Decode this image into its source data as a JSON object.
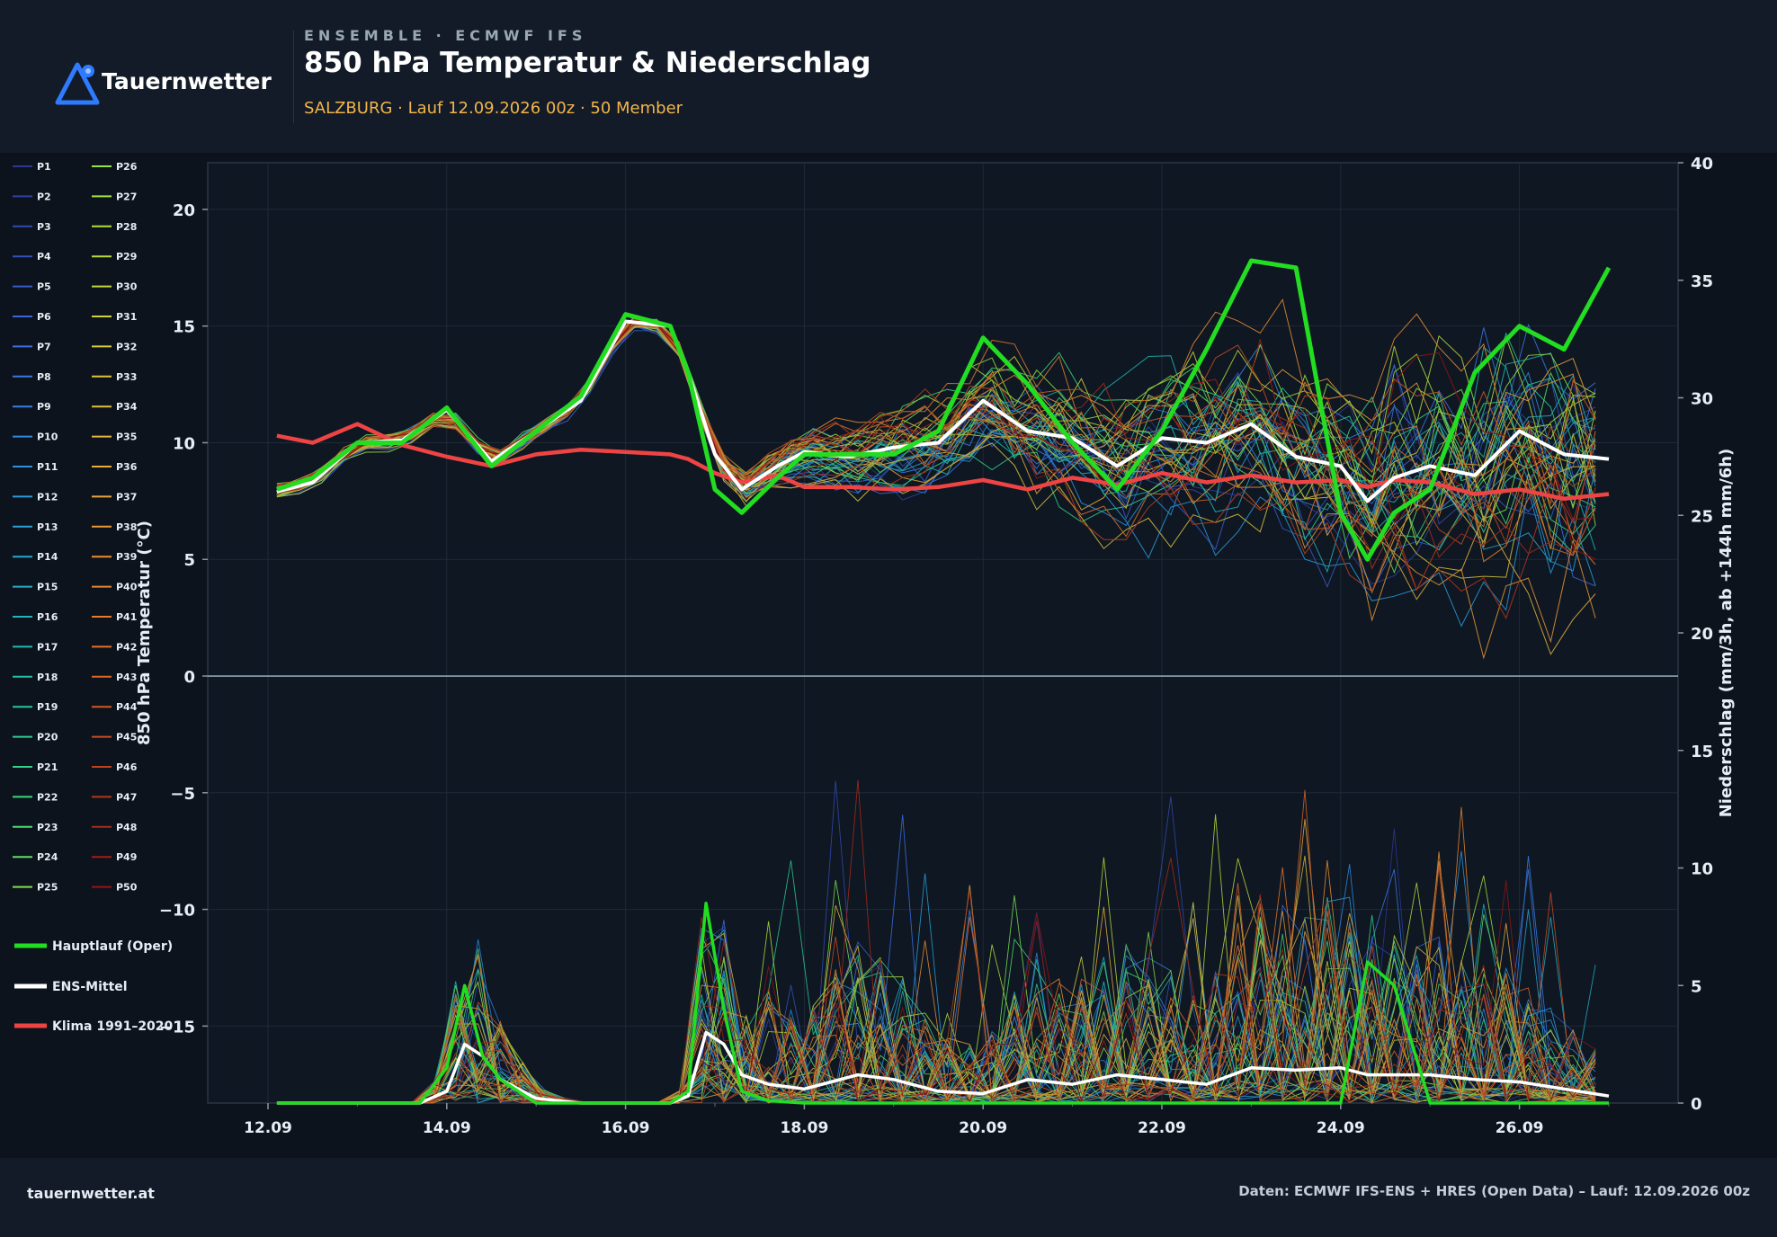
{
  "header": {
    "brand": "Tauernwetter",
    "kicker": "ENSEMBLE · ECMWF IFS",
    "title": "850 hPa Temperatur & Niederschlag",
    "subtitle": "SALZBURG · Lauf 12.09.2026 00z · 50 Member"
  },
  "footer": {
    "left": "tauernwetter.at",
    "right": "Daten: ECMWF IFS-ENS + HRES (Open Data) – Lauf: 12.09.2026 00z"
  },
  "colors": {
    "background": "#0d131c",
    "panel": "#121b27",
    "oper": "#22dd22",
    "mean": "#ffffff",
    "clim": "#ee4444",
    "accent": "#f2b54a"
  },
  "chart_data": {
    "type": "line",
    "x_domain_days": [
      12,
      27
    ],
    "x_ticks": [
      {
        "day": 12,
        "label": "12.09"
      },
      {
        "day": 14,
        "label": "14.09"
      },
      {
        "day": 16,
        "label": "16.09"
      },
      {
        "day": 18,
        "label": "18.09"
      },
      {
        "day": 20,
        "label": "20.09"
      },
      {
        "day": 22,
        "label": "22.09"
      },
      {
        "day": 24,
        "label": "24.09"
      },
      {
        "day": 26,
        "label": "26.09"
      }
    ],
    "y_left": {
      "label": "850 hPa Temperatur (°C)",
      "range": [
        -18.3,
        22
      ],
      "ticks": [
        20,
        15,
        10,
        5,
        0,
        -5,
        -10,
        -15
      ],
      "tick_labels": [
        "20",
        "15",
        "10",
        "5",
        "0",
        "−5",
        "−10",
        "−15"
      ]
    },
    "y_right": {
      "label": "Niederschlag (mm/3h, ab +144h mm/6h)",
      "range": [
        0,
        40
      ],
      "ticks": [
        0,
        5,
        10,
        15,
        20,
        25,
        30,
        35,
        40
      ]
    },
    "grid": true,
    "legend": {
      "placement": "left",
      "members": [
        "P1",
        "P2",
        "P3",
        "P4",
        "P5",
        "P6",
        "P7",
        "P8",
        "P9",
        "P10",
        "P11",
        "P12",
        "P13",
        "P14",
        "P15",
        "P16",
        "P17",
        "P18",
        "P19",
        "P20",
        "P21",
        "P22",
        "P23",
        "P24",
        "P25",
        "P26",
        "P27",
        "P28",
        "P29",
        "P30",
        "P31",
        "P32",
        "P33",
        "P34",
        "P35",
        "P36",
        "P37",
        "P38",
        "P39",
        "P40",
        "P41",
        "P42",
        "P43",
        "P44",
        "P45",
        "P46",
        "P47",
        "P48",
        "P49",
        "P50"
      ],
      "oper": "Hauptlauf (Oper)",
      "mean": "ENS-Mittel",
      "clim": "Klima 1991–2020"
    },
    "temperature": {
      "x_days": [
        12.1,
        12.5,
        13.0,
        13.5,
        14.0,
        14.5,
        15.0,
        15.5,
        16.0,
        16.5,
        16.7,
        17.0,
        17.3,
        17.7,
        18.0,
        18.5,
        19.0,
        19.5,
        20.0,
        20.5,
        21.0,
        21.5,
        22.0,
        22.5,
        23.0,
        23.5,
        24.0,
        24.3,
        24.6,
        25.0,
        25.5,
        26.0,
        26.5,
        27.0
      ],
      "oper": [
        8.0,
        8.5,
        10.0,
        10.0,
        11.5,
        9.0,
        10.5,
        12.0,
        15.5,
        15.0,
        13.0,
        8.0,
        7.0,
        8.5,
        9.5,
        9.5,
        9.5,
        10.5,
        14.5,
        12.5,
        10.0,
        8.0,
        10.5,
        14.0,
        17.8,
        17.5,
        7.0,
        5.0,
        7.0,
        8.0,
        13.0,
        15.0,
        14.0,
        17.5
      ],
      "mean": [
        7.9,
        8.3,
        10.0,
        10.1,
        11.4,
        9.2,
        10.5,
        11.8,
        15.2,
        15.0,
        13.0,
        9.5,
        8.0,
        9.0,
        9.6,
        9.4,
        9.8,
        10.0,
        11.8,
        10.5,
        10.2,
        9.0,
        10.2,
        10.0,
        10.8,
        9.4,
        9.0,
        7.5,
        8.5,
        9.0,
        8.6,
        10.5,
        9.5,
        9.3
      ],
      "clim": [
        10.3,
        10.0,
        10.8,
        9.9,
        9.4,
        9.0,
        9.5,
        9.7,
        9.6,
        9.5,
        9.3,
        8.7,
        8.3,
        8.6,
        8.1,
        8.1,
        8.0,
        8.1,
        8.4,
        8.0,
        8.5,
        8.2,
        8.7,
        8.3,
        8.6,
        8.3,
        8.4,
        8.1,
        8.4,
        8.3,
        7.8,
        8.0,
        7.6,
        7.8
      ]
    },
    "precipitation": {
      "x_days": [
        12.1,
        12.5,
        13.0,
        13.7,
        14.0,
        14.2,
        14.4,
        14.6,
        15.0,
        15.5,
        16.0,
        16.5,
        16.7,
        16.9,
        17.1,
        17.3,
        17.6,
        18.0,
        18.3,
        18.6,
        19.0,
        19.5,
        20.0,
        20.5,
        21.0,
        21.5,
        22.0,
        22.5,
        23.0,
        23.5,
        24.0,
        24.3,
        24.6,
        25.0,
        25.5,
        26.0,
        26.5,
        27.0
      ],
      "oper": [
        0.0,
        0.0,
        0.0,
        0.0,
        1.5,
        5.0,
        2.0,
        1.0,
        0.0,
        0.0,
        0.0,
        0.0,
        0.5,
        8.5,
        4.0,
        0.5,
        0.1,
        0.0,
        0.0,
        0.0,
        0.0,
        0.0,
        0.0,
        0.0,
        0.0,
        0.0,
        0.0,
        0.0,
        0.0,
        0.0,
        0.0,
        6.0,
        5.0,
        0.0,
        0.0,
        0.0,
        0.0,
        0.0
      ],
      "mean": [
        0.0,
        0.0,
        0.0,
        0.0,
        0.5,
        2.5,
        2.0,
        1.0,
        0.2,
        0.0,
        0.0,
        0.0,
        0.3,
        3.0,
        2.5,
        1.2,
        0.8,
        0.6,
        0.9,
        1.2,
        1.0,
        0.5,
        0.4,
        1.0,
        0.8,
        1.2,
        1.0,
        0.8,
        1.5,
        1.4,
        1.5,
        1.2,
        1.2,
        1.2,
        1.0,
        0.9,
        0.6,
        0.3
      ]
    },
    "ensemble_note_members": 50
  }
}
